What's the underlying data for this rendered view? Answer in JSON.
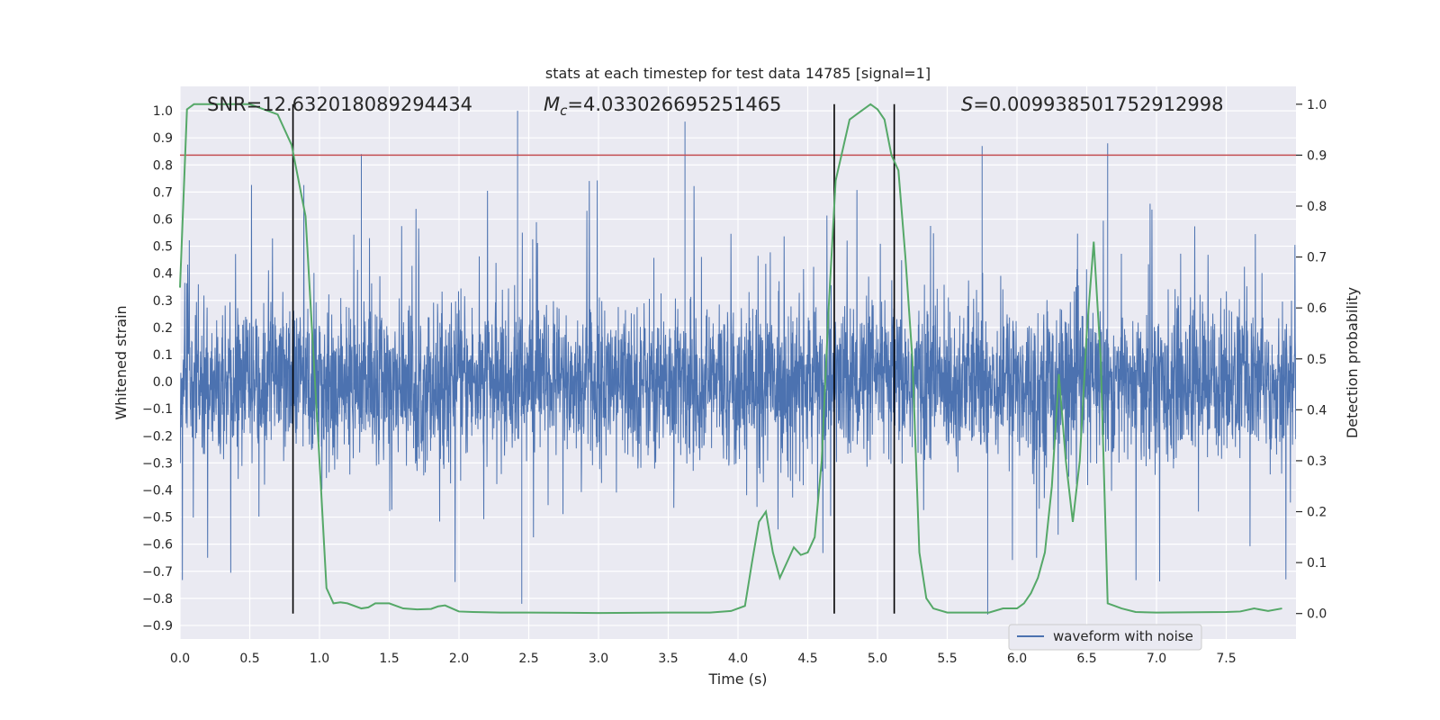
{
  "chart_data": {
    "type": "line",
    "title": "stats at each timestep for test data 14785 [signal=1]",
    "xlabel": "Time (s)",
    "ylabel_left": "Whitened strain",
    "ylabel_right": "Detection probability",
    "xlim": [
      0.0,
      8.0
    ],
    "ylim_left": [
      -0.95,
      1.09
    ],
    "ylim_right": [
      -0.05,
      1.035
    ],
    "x_ticks": [
      "0.0",
      "0.5",
      "1.0",
      "1.5",
      "2.0",
      "2.5",
      "3.0",
      "3.5",
      "4.0",
      "4.5",
      "5.0",
      "5.5",
      "6.0",
      "6.5",
      "7.0",
      "7.5"
    ],
    "y_ticks_left": [
      "−0.9",
      "−0.8",
      "−0.7",
      "−0.6",
      "−0.5",
      "−0.4",
      "−0.3",
      "−0.2",
      "−0.1",
      "0.0",
      "0.1",
      "0.2",
      "0.3",
      "0.4",
      "0.5",
      "0.6",
      "0.7",
      "0.8",
      "0.9",
      "1.0"
    ],
    "y_ticks_right": [
      "0.0",
      "0.1",
      "0.2",
      "0.3",
      "0.4",
      "0.5",
      "0.6",
      "0.7",
      "0.8",
      "0.9",
      "1.0"
    ],
    "grid": true,
    "legend": {
      "position": "lower-right",
      "entries": [
        "waveform with noise"
      ]
    },
    "annotations": {
      "snr_text": "SNR=12.632018089294434",
      "mc_symbol": "M",
      "mc_subscript": "c",
      "mc_value": "=4.033026695251465",
      "s_symbol": "S",
      "s_value": "=0.009938501752912998"
    },
    "threshold": {
      "axis": "right",
      "value": 0.9,
      "color": "#c44e52"
    },
    "vertical_lines": [
      0.81,
      4.69,
      5.12
    ],
    "series": [
      {
        "name": "waveform with noise",
        "axis": "left",
        "color": "#4c72b0",
        "style": "dense noise",
        "core_amplitude": 0.3,
        "spike_max": 1.0,
        "spike_min": -0.86,
        "notable_spikes": [
          [
            0.81,
            0.55
          ],
          [
            1.3,
            0.84
          ],
          [
            2.42,
            1.0
          ],
          [
            2.45,
            -0.82
          ],
          [
            3.62,
            0.96
          ],
          [
            5.75,
            0.87
          ],
          [
            5.79,
            -0.86
          ],
          [
            6.65,
            0.88
          ]
        ]
      },
      {
        "axis": "right",
        "color": "#55a868",
        "x": [
          0.0,
          0.05,
          0.1,
          0.2,
          0.3,
          0.4,
          0.5,
          0.6,
          0.7,
          0.8,
          0.9,
          1.0,
          1.05,
          1.1,
          1.15,
          1.2,
          1.3,
          1.35,
          1.4,
          1.5,
          1.6,
          1.7,
          1.8,
          1.85,
          1.9,
          2.0,
          2.1,
          2.3,
          2.5,
          3.0,
          3.5,
          3.8,
          3.95,
          4.05,
          4.1,
          4.15,
          4.2,
          4.25,
          4.3,
          4.35,
          4.4,
          4.45,
          4.5,
          4.55,
          4.6,
          4.65,
          4.7,
          4.8,
          4.85,
          4.9,
          4.95,
          5.0,
          5.05,
          5.1,
          5.15,
          5.2,
          5.25,
          5.3,
          5.35,
          5.4,
          5.5,
          5.8,
          5.9,
          6.0,
          6.05,
          6.1,
          6.15,
          6.2,
          6.25,
          6.3,
          6.35,
          6.4,
          6.45,
          6.5,
          6.55,
          6.6,
          6.65,
          6.7,
          6.75,
          6.85,
          7.0,
          7.5,
          7.6,
          7.7,
          7.8,
          7.9
        ],
        "values": [
          0.64,
          0.99,
          1.0,
          1.0,
          1.0,
          1.0,
          1.0,
          0.99,
          0.98,
          0.92,
          0.78,
          0.3,
          0.05,
          0.02,
          0.022,
          0.02,
          0.01,
          0.012,
          0.02,
          0.02,
          0.01,
          0.008,
          0.009,
          0.014,
          0.016,
          0.004,
          0.003,
          0.002,
          0.002,
          0.001,
          0.002,
          0.002,
          0.005,
          0.015,
          0.1,
          0.18,
          0.2,
          0.12,
          0.07,
          0.1,
          0.13,
          0.115,
          0.12,
          0.15,
          0.3,
          0.6,
          0.85,
          0.97,
          0.98,
          0.99,
          1.0,
          0.99,
          0.97,
          0.9,
          0.87,
          0.7,
          0.5,
          0.12,
          0.03,
          0.01,
          0.002,
          0.002,
          0.01,
          0.01,
          0.02,
          0.04,
          0.07,
          0.12,
          0.25,
          0.47,
          0.3,
          0.18,
          0.3,
          0.55,
          0.73,
          0.5,
          0.02,
          0.015,
          0.01,
          0.003,
          0.002,
          0.003,
          0.004,
          0.01,
          0.005,
          0.01
        ]
      }
    ]
  }
}
